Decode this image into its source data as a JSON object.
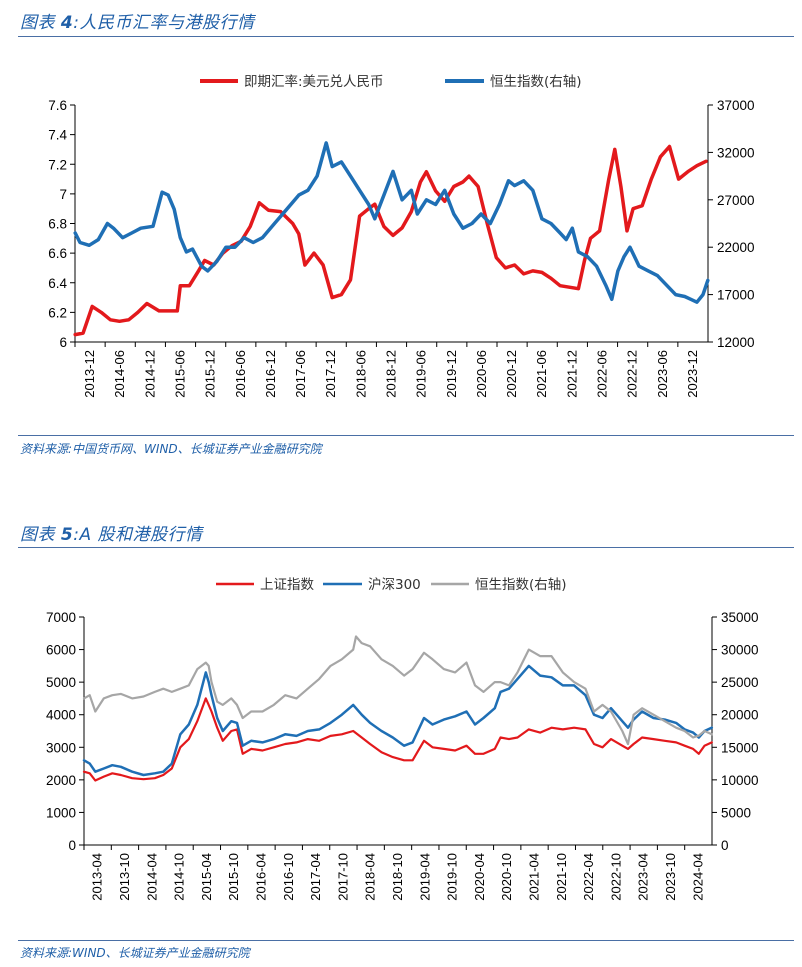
{
  "figures": [
    {
      "title_prefix": "图表 ",
      "title_num": "4",
      "title_suffix": ":人民币汇率与港股行情",
      "source": "资料来源:中国货币网、WIND、长城证券产业金融研究院"
    },
    {
      "title_prefix": "图表 ",
      "title_num": "5",
      "title_suffix": ":A 股和港股行情",
      "source": "资料来源:WIND、长城证券产业金融研究院"
    }
  ],
  "colors": {
    "red": "#e3191c",
    "blue": "#1f6fb5",
    "gray": "#a6a6a6",
    "accent": "#1f5fa8"
  },
  "chart_data": [
    {
      "type": "line",
      "legend": [
        "即期汇率:美元兑人民币",
        "恒生指数(右轴)"
      ],
      "legend_placement": "top",
      "grid": false,
      "x_tick_labels": [
        "2013-12",
        "2014-06",
        "2014-12",
        "2015-06",
        "2015-12",
        "2016-06",
        "2016-12",
        "2017-06",
        "2017-12",
        "2018-06",
        "2018-12",
        "2019-06",
        "2019-12",
        "2020-06",
        "2020-12",
        "2021-06",
        "2021-12",
        "2022-06",
        "2022-12",
        "2023-06",
        "2023-12"
      ],
      "y_left": {
        "ylim": [
          6,
          7.6
        ],
        "ticks": [
          "6",
          "6.2",
          "6.4",
          "6.6",
          "6.8",
          "7",
          "7.2",
          "7.4",
          "7.6"
        ]
      },
      "y_right": {
        "ylim": [
          12000,
          37000
        ],
        "ticks": [
          "12000",
          "17000",
          "22000",
          "27000",
          "32000",
          "37000"
        ]
      },
      "x_range": [
        2013.917,
        2024.333
      ],
      "series": [
        {
          "name": "即期汇率:美元兑人民币",
          "axis": "left",
          "color": "red",
          "x": [
            2013.92,
            2014.05,
            2014.2,
            2014.35,
            2014.5,
            2014.65,
            2014.8,
            2014.95,
            2015.1,
            2015.3,
            2015.5,
            2015.6,
            2015.65,
            2015.8,
            2015.95,
            2016.05,
            2016.2,
            2016.35,
            2016.5,
            2016.65,
            2016.8,
            2016.95,
            2017.1,
            2017.3,
            2017.5,
            2017.6,
            2017.7,
            2017.85,
            2018.0,
            2018.15,
            2018.3,
            2018.45,
            2018.6,
            2018.75,
            2018.85,
            2019.0,
            2019.15,
            2019.3,
            2019.45,
            2019.6,
            2019.7,
            2019.85,
            2020.0,
            2020.15,
            2020.3,
            2020.4,
            2020.55,
            2020.7,
            2020.85,
            2021.0,
            2021.15,
            2021.3,
            2021.45,
            2021.6,
            2021.75,
            2021.9,
            2022.05,
            2022.2,
            2022.3,
            2022.4,
            2022.55,
            2022.7,
            2022.8,
            2022.9,
            2023.0,
            2023.1,
            2023.25,
            2023.4,
            2023.55,
            2023.7,
            2023.85,
            2024.0,
            2024.15,
            2024.3
          ],
          "y": [
            6.05,
            6.06,
            6.24,
            6.2,
            6.15,
            6.14,
            6.15,
            6.2,
            6.26,
            6.21,
            6.21,
            6.21,
            6.38,
            6.38,
            6.48,
            6.55,
            6.52,
            6.6,
            6.65,
            6.68,
            6.78,
            6.94,
            6.89,
            6.88,
            6.8,
            6.73,
            6.52,
            6.6,
            6.52,
            6.3,
            6.32,
            6.42,
            6.85,
            6.9,
            6.93,
            6.78,
            6.72,
            6.77,
            6.88,
            7.08,
            7.15,
            7.02,
            6.95,
            7.05,
            7.08,
            7.12,
            7.05,
            6.8,
            6.57,
            6.5,
            6.52,
            6.46,
            6.48,
            6.47,
            6.43,
            6.38,
            6.37,
            6.36,
            6.55,
            6.7,
            6.75,
            7.1,
            7.3,
            7.05,
            6.75,
            6.9,
            6.92,
            7.1,
            7.25,
            7.32,
            7.1,
            7.15,
            7.19,
            7.22
          ]
        },
        {
          "name": "恒生指数(右轴)",
          "axis": "right",
          "color": "blue",
          "x": [
            2013.92,
            2014.0,
            2014.15,
            2014.3,
            2014.45,
            2014.55,
            2014.7,
            2014.85,
            2015.0,
            2015.2,
            2015.35,
            2015.45,
            2015.55,
            2015.65,
            2015.75,
            2015.85,
            2016.0,
            2016.1,
            2016.25,
            2016.4,
            2016.55,
            2016.7,
            2016.85,
            2017.0,
            2017.2,
            2017.4,
            2017.6,
            2017.75,
            2017.9,
            2018.05,
            2018.15,
            2018.3,
            2018.45,
            2018.6,
            2018.75,
            2018.85,
            2019.0,
            2019.15,
            2019.3,
            2019.45,
            2019.55,
            2019.7,
            2019.85,
            2020.0,
            2020.15,
            2020.3,
            2020.45,
            2020.6,
            2020.75,
            2020.9,
            2021.05,
            2021.15,
            2021.3,
            2021.45,
            2021.6,
            2021.75,
            2021.9,
            2022.0,
            2022.1,
            2022.2,
            2022.35,
            2022.5,
            2022.65,
            2022.75,
            2022.85,
            2022.95,
            2023.05,
            2023.2,
            2023.35,
            2023.5,
            2023.65,
            2023.8,
            2023.95,
            2024.05,
            2024.15,
            2024.25,
            2024.33
          ],
          "y": [
            23500,
            22500,
            22200,
            22800,
            24500,
            24000,
            23000,
            23500,
            24000,
            24200,
            27800,
            27500,
            26000,
            23000,
            21500,
            21800,
            20000,
            19500,
            20500,
            22000,
            22000,
            23000,
            22500,
            23000,
            24500,
            26000,
            27500,
            28000,
            29500,
            33000,
            30500,
            31000,
            29500,
            28000,
            26500,
            25000,
            27500,
            30000,
            27000,
            28000,
            25500,
            27000,
            26500,
            28000,
            25500,
            24000,
            24500,
            25500,
            24500,
            26500,
            29000,
            28500,
            29000,
            28000,
            25000,
            24500,
            23500,
            22800,
            24000,
            21500,
            21000,
            20000,
            18000,
            16500,
            19500,
            21000,
            22000,
            20000,
            19500,
            19000,
            18000,
            17000,
            16800,
            16500,
            16200,
            17000,
            18500
          ]
        }
      ]
    },
    {
      "type": "line",
      "legend": [
        "上证指数",
        "沪深300",
        "恒生指数(右轴)"
      ],
      "legend_placement": "top",
      "grid": false,
      "x_tick_labels": [
        "2013-04",
        "2013-10",
        "2014-04",
        "2014-10",
        "2015-04",
        "2015-10",
        "2016-04",
        "2016-10",
        "2017-04",
        "2017-10",
        "2018-04",
        "2018-10",
        "2019-04",
        "2019-10",
        "2020-04",
        "2020-10",
        "2021-04",
        "2021-10",
        "2022-04",
        "2022-10",
        "2023-04",
        "2023-10",
        "2024-04"
      ],
      "y_left": {
        "ylim": [
          0,
          7000
        ],
        "ticks": [
          "0",
          "1000",
          "2000",
          "3000",
          "4000",
          "5000",
          "6000",
          "7000"
        ]
      },
      "y_right": {
        "ylim": [
          0,
          35000
        ],
        "ticks": [
          "0",
          "5000",
          "10000",
          "15000",
          "20000",
          "25000",
          "30000",
          "35000"
        ]
      },
      "x_range": [
        2013.25,
        2024.333
      ],
      "series": [
        {
          "name": "上证指数",
          "axis": "left",
          "color": "red",
          "x": [
            2013.25,
            2013.35,
            2013.45,
            2013.6,
            2013.75,
            2013.9,
            2014.1,
            2014.3,
            2014.5,
            2014.65,
            2014.8,
            2014.95,
            2015.1,
            2015.25,
            2015.4,
            2015.45,
            2015.5,
            2015.6,
            2015.7,
            2015.85,
            2015.95,
            2016.05,
            2016.2,
            2016.4,
            2016.6,
            2016.8,
            2017.0,
            2017.2,
            2017.4,
            2017.6,
            2017.8,
            2018.0,
            2018.15,
            2018.3,
            2018.5,
            2018.7,
            2018.9,
            2019.05,
            2019.25,
            2019.4,
            2019.6,
            2019.8,
            2020.0,
            2020.15,
            2020.3,
            2020.5,
            2020.6,
            2020.75,
            2020.9,
            2021.1,
            2021.3,
            2021.5,
            2021.7,
            2021.9,
            2022.1,
            2022.25,
            2022.4,
            2022.55,
            2022.75,
            2022.85,
            2022.95,
            2023.1,
            2023.3,
            2023.5,
            2023.7,
            2023.85,
            2024.0,
            2024.1,
            2024.2,
            2024.33
          ],
          "y": [
            2250,
            2200,
            1980,
            2100,
            2200,
            2150,
            2050,
            2020,
            2050,
            2150,
            2350,
            3000,
            3250,
            3800,
            4500,
            4300,
            4100,
            3600,
            3200,
            3500,
            3550,
            2800,
            2950,
            2900,
            3000,
            3100,
            3150,
            3250,
            3200,
            3350,
            3400,
            3500,
            3300,
            3100,
            2850,
            2700,
            2600,
            2600,
            3200,
            3000,
            2950,
            2900,
            3050,
            2800,
            2800,
            2950,
            3300,
            3250,
            3300,
            3550,
            3450,
            3600,
            3550,
            3600,
            3550,
            3100,
            3000,
            3250,
            3050,
            2950,
            3100,
            3300,
            3250,
            3200,
            3150,
            3050,
            2950,
            2800,
            3050,
            3150
          ]
        },
        {
          "name": "沪深300",
          "axis": "left",
          "color": "blue",
          "x": [
            2013.25,
            2013.35,
            2013.45,
            2013.6,
            2013.75,
            2013.9,
            2014.1,
            2014.3,
            2014.5,
            2014.65,
            2014.8,
            2014.95,
            2015.1,
            2015.25,
            2015.4,
            2015.45,
            2015.5,
            2015.6,
            2015.7,
            2015.85,
            2015.95,
            2016.05,
            2016.2,
            2016.4,
            2016.6,
            2016.8,
            2017.0,
            2017.2,
            2017.4,
            2017.6,
            2017.8,
            2018.0,
            2018.15,
            2018.3,
            2018.5,
            2018.7,
            2018.9,
            2019.05,
            2019.25,
            2019.4,
            2019.6,
            2019.8,
            2020.0,
            2020.15,
            2020.3,
            2020.5,
            2020.6,
            2020.75,
            2020.9,
            2021.1,
            2021.3,
            2021.5,
            2021.7,
            2021.9,
            2022.1,
            2022.25,
            2022.4,
            2022.55,
            2022.75,
            2022.85,
            2022.95,
            2023.1,
            2023.3,
            2023.5,
            2023.7,
            2023.85,
            2024.0,
            2024.1,
            2024.2,
            2024.33
          ],
          "y": [
            2600,
            2500,
            2250,
            2350,
            2450,
            2400,
            2250,
            2150,
            2200,
            2250,
            2500,
            3400,
            3700,
            4300,
            5300,
            5000,
            4600,
            3900,
            3500,
            3800,
            3750,
            3050,
            3200,
            3150,
            3250,
            3400,
            3350,
            3500,
            3550,
            3750,
            4000,
            4300,
            4000,
            3750,
            3500,
            3300,
            3050,
            3150,
            3900,
            3700,
            3850,
            3950,
            4100,
            3700,
            3900,
            4200,
            4700,
            4800,
            5100,
            5500,
            5200,
            5150,
            4900,
            4900,
            4600,
            4000,
            3900,
            4200,
            3800,
            3600,
            3850,
            4100,
            3900,
            3850,
            3750,
            3550,
            3450,
            3300,
            3500,
            3600
          ]
        },
        {
          "name": "恒生指数(右轴)",
          "axis": "right",
          "color": "gray",
          "x": [
            2013.25,
            2013.35,
            2013.45,
            2013.6,
            2013.75,
            2013.9,
            2014.1,
            2014.3,
            2014.5,
            2014.65,
            2014.8,
            2014.95,
            2015.1,
            2015.25,
            2015.4,
            2015.45,
            2015.5,
            2015.6,
            2015.7,
            2015.85,
            2015.95,
            2016.05,
            2016.2,
            2016.4,
            2016.6,
            2016.8,
            2017.0,
            2017.2,
            2017.4,
            2017.6,
            2017.8,
            2018.0,
            2018.05,
            2018.15,
            2018.3,
            2018.5,
            2018.7,
            2018.9,
            2019.05,
            2019.25,
            2019.4,
            2019.6,
            2019.8,
            2020.0,
            2020.15,
            2020.3,
            2020.5,
            2020.6,
            2020.75,
            2020.9,
            2021.1,
            2021.3,
            2021.5,
            2021.7,
            2021.9,
            2022.1,
            2022.25,
            2022.4,
            2022.55,
            2022.75,
            2022.85,
            2022.95,
            2023.1,
            2023.3,
            2023.5,
            2023.7,
            2023.85,
            2024.0,
            2024.1,
            2024.2,
            2024.33
          ],
          "y": [
            22500,
            23000,
            20500,
            22500,
            23000,
            23200,
            22500,
            22800,
            23500,
            24000,
            23500,
            24000,
            24500,
            27000,
            28000,
            27500,
            25000,
            22000,
            21500,
            22500,
            21500,
            19500,
            20500,
            20500,
            21500,
            23000,
            22500,
            24000,
            25500,
            27500,
            28500,
            30000,
            32000,
            31000,
            30500,
            28500,
            27500,
            26000,
            27000,
            29500,
            28500,
            27000,
            26500,
            28000,
            24500,
            23500,
            25000,
            25000,
            24500,
            26500,
            30000,
            29000,
            29000,
            26500,
            25000,
            24000,
            20500,
            21500,
            20500,
            17500,
            15500,
            20000,
            21000,
            20000,
            19000,
            18000,
            17500,
            16500,
            16800,
            17500,
            17000
          ]
        }
      ]
    }
  ]
}
